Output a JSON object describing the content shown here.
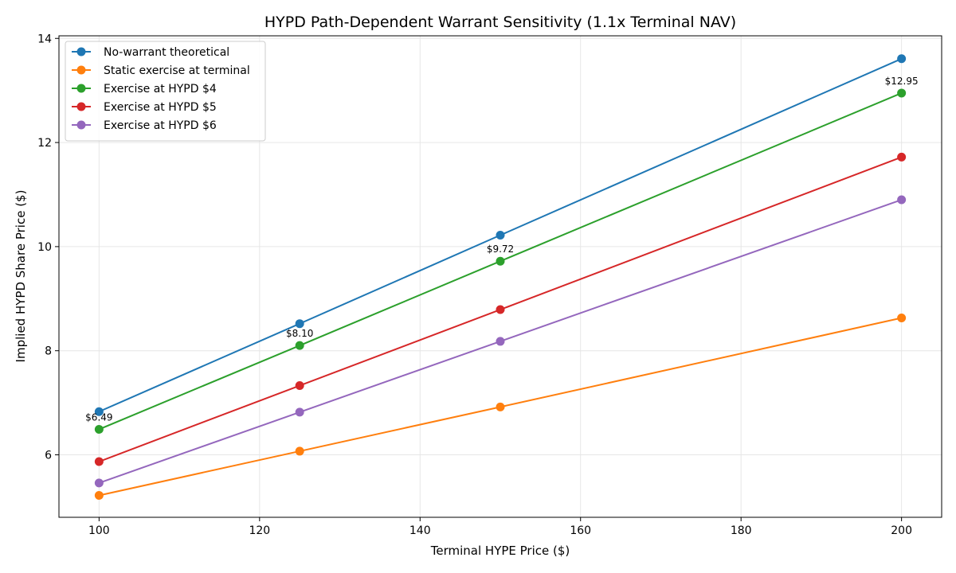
{
  "chart_data": {
    "type": "line",
    "title": "HYPD Path-Dependent Warrant Sensitivity (1.1x Terminal NAV)",
    "xlabel": "Terminal HYPE Price ($)",
    "ylabel": "Implied HYPD Share Price ($)",
    "x": [
      100,
      125,
      150,
      200
    ],
    "xlim": [
      95,
      205
    ],
    "ylim": [
      4.8,
      14.05
    ],
    "xticks": [
      100,
      120,
      140,
      160,
      180,
      200
    ],
    "yticks": [
      6,
      8,
      10,
      12,
      14
    ],
    "grid": true,
    "legend_position": "top-left",
    "series": [
      {
        "name": "No-warrant theoretical",
        "color": "#1f77b4",
        "values": [
          6.83,
          8.52,
          10.22,
          13.61
        ]
      },
      {
        "name": "Static exercise at terminal",
        "color": "#ff7f0e",
        "values": [
          5.22,
          6.07,
          6.92,
          8.63
        ]
      },
      {
        "name": "Exercise at HYPD $4",
        "color": "#2ca02c",
        "values": [
          6.49,
          8.1,
          9.72,
          12.95
        ]
      },
      {
        "name": "Exercise at HYPD $5",
        "color": "#d62728",
        "values": [
          5.87,
          7.33,
          8.79,
          11.72
        ]
      },
      {
        "name": "Exercise at HYPD $6",
        "color": "#9467bd",
        "values": [
          5.46,
          6.82,
          8.18,
          10.9
        ]
      }
    ],
    "annotations": [
      {
        "x": 100,
        "y": 6.49,
        "text": "$6.49"
      },
      {
        "x": 125,
        "y": 8.1,
        "text": "$8.10"
      },
      {
        "x": 150,
        "y": 9.72,
        "text": "$9.72"
      },
      {
        "x": 200,
        "y": 12.95,
        "text": "$12.95"
      }
    ]
  }
}
